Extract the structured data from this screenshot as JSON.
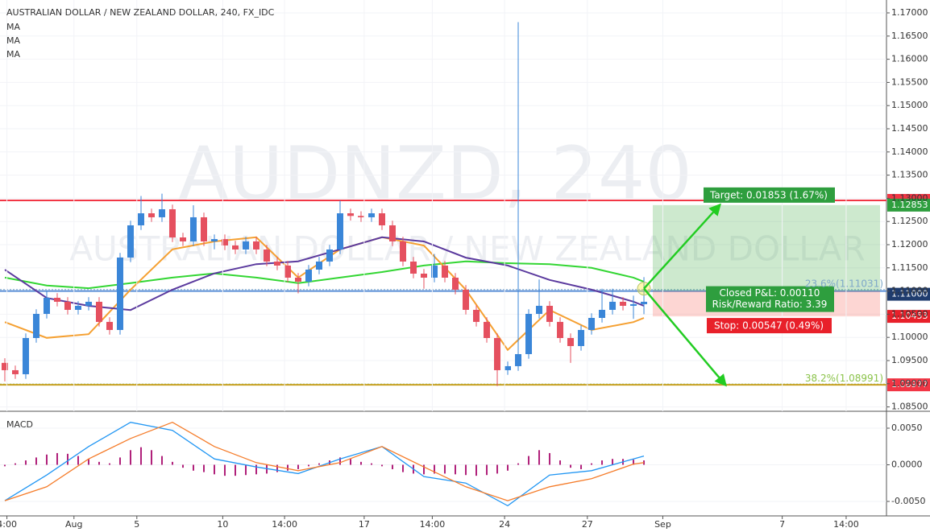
{
  "watermark": {
    "symbol": "AUDNZD, 240",
    "name": "AUSTRALIAN DOLLAR / NEW ZEALAND DOLLAR"
  },
  "chart_data": [
    {
      "type": "candlestick",
      "title": "AUSTRALIAN DOLLAR / NEW ZEALAND DOLLAR, 240, FX_IDC",
      "up_color": "#3a86d8",
      "down_color": "#e5505f",
      "grid": true,
      "xlim": [
        -0.46,
        84.15
      ],
      "ylim": [
        1.08406,
        1.17278
      ],
      "yticks": [
        {
          "value": 1.085,
          "label": "1.08500"
        },
        {
          "value": 1.09,
          "label": "1.09000"
        },
        {
          "value": 1.095,
          "label": "1.09500"
        },
        {
          "value": 1.1,
          "label": "1.10000"
        },
        {
          "value": 1.105,
          "label": "1.10500"
        },
        {
          "value": 1.11,
          "label": "1.11000"
        },
        {
          "value": 1.115,
          "label": "1.11500"
        },
        {
          "value": 1.12,
          "label": "1.12000"
        },
        {
          "value": 1.125,
          "label": "1.12500"
        },
        {
          "value": 1.13,
          "label": "1.13000"
        },
        {
          "value": 1.135,
          "label": "1.13500"
        },
        {
          "value": 1.14,
          "label": "1.14000"
        },
        {
          "value": 1.145,
          "label": "1.14500"
        },
        {
          "value": 1.15,
          "label": "1.15000"
        },
        {
          "value": 1.155,
          "label": "1.15500"
        },
        {
          "value": 1.16,
          "label": "1.16000"
        },
        {
          "value": 1.165,
          "label": "1.16500"
        },
        {
          "value": 1.17,
          "label": "1.17000"
        }
      ],
      "open": [
        1.0945,
        1.09292,
        1.09205,
        1.09986,
        1.10507,
        1.10854,
        1.10768,
        1.10594,
        1.10681,
        1.10768,
        1.10334,
        1.1016,
        1.11722,
        1.12417,
        1.12677,
        1.12591,
        1.12764,
        1.12156,
        1.1207,
        1.12591,
        1.1207,
        1.1212,
        1.11983,
        1.11896,
        1.1207,
        1.11896,
        1.11636,
        1.11549,
        1.11288,
        1.11202,
        1.11462,
        1.11636,
        1.11896,
        1.12677,
        1.1262,
        1.12591,
        1.12677,
        1.12417,
        1.1207,
        1.11636,
        1.11375,
        1.11288,
        1.11549,
        1.11288,
        1.11028,
        1.10594,
        1.10334,
        1.09986,
        1.09292,
        1.09379,
        1.09639,
        1.10507,
        1.10681,
        1.10334,
        1.09986,
        1.09813,
        1.1016,
        1.1042,
        1.10594,
        1.10768,
        1.10681,
        1.10716
      ],
      "high": [
        1.0955,
        1.09392,
        1.10086,
        1.10607,
        1.11,
        1.10954,
        1.10868,
        1.10781,
        1.10868,
        1.10868,
        1.10434,
        1.11822,
        1.12517,
        1.1305,
        1.12777,
        1.131,
        1.12864,
        1.12256,
        1.1285,
        1.12691,
        1.1222,
        1.1222,
        1.12083,
        1.1217,
        1.1217,
        1.11996,
        1.11736,
        1.11649,
        1.11388,
        1.11562,
        1.11736,
        1.11996,
        1.1295,
        1.12777,
        1.1272,
        1.12777,
        1.12777,
        1.12517,
        1.1217,
        1.11736,
        1.11475,
        1.118,
        1.11649,
        1.11388,
        1.11128,
        1.10694,
        1.10434,
        1.10086,
        1.09479,
        1.168,
        1.10607,
        1.1125,
        1.10781,
        1.10434,
        1.10086,
        1.1026,
        1.1052,
        1.1105,
        1.1105,
        1.10868,
        1.109,
        1.113
      ],
      "low": [
        1.0905,
        1.09105,
        1.09105,
        1.09886,
        1.10407,
        1.10668,
        1.10494,
        1.10494,
        1.10581,
        1.10234,
        1.1006,
        1.1006,
        1.11622,
        1.12317,
        1.12491,
        1.12491,
        1.12056,
        1.1197,
        1.1197,
        1.1197,
        1.119,
        1.11883,
        1.11796,
        1.11796,
        1.11796,
        1.11536,
        1.11449,
        1.11188,
        1.1095,
        1.11102,
        1.11362,
        1.11536,
        1.11796,
        1.1252,
        1.12491,
        1.12491,
        1.12317,
        1.1197,
        1.11536,
        1.11275,
        1.1105,
        1.11188,
        1.11188,
        1.10928,
        1.10494,
        1.10234,
        1.09886,
        1.0895,
        1.09192,
        1.09279,
        1.09539,
        1.10407,
        1.10234,
        1.09886,
        1.0945,
        1.09713,
        1.1006,
        1.1032,
        1.10494,
        1.10581,
        1.104,
        1.105
      ],
      "close": [
        1.09292,
        1.09205,
        1.09986,
        1.10507,
        1.10854,
        1.10768,
        1.10594,
        1.10681,
        1.10768,
        1.10334,
        1.1016,
        1.11722,
        1.12417,
        1.12677,
        1.12591,
        1.12764,
        1.12156,
        1.1207,
        1.12591,
        1.1207,
        1.1212,
        1.11983,
        1.11896,
        1.1207,
        1.11896,
        1.11636,
        1.11549,
        1.11288,
        1.11202,
        1.11462,
        1.11636,
        1.11896,
        1.12677,
        1.1262,
        1.12591,
        1.12677,
        1.12417,
        1.1207,
        1.11636,
        1.11375,
        1.11288,
        1.11549,
        1.11288,
        1.11028,
        1.10594,
        1.10334,
        1.09986,
        1.09292,
        1.09379,
        1.09639,
        1.10507,
        1.10681,
        1.10334,
        1.09986,
        1.09813,
        1.1016,
        1.1042,
        1.10594,
        1.10768,
        1.10681,
        1.10716,
        1.10768
      ],
      "series": [
        {
          "name": "MA",
          "color": "#33d633",
          "x": [
            0,
            4,
            8,
            12,
            16,
            20,
            24,
            28,
            32,
            36,
            40,
            44,
            48,
            52,
            56,
            60,
            61
          ],
          "values": [
            1.1129,
            1.1112,
            1.1106,
            1.1117,
            1.1129,
            1.1138,
            1.1129,
            1.1117,
            1.1129,
            1.1141,
            1.1155,
            1.1164,
            1.116,
            1.1158,
            1.115,
            1.1129,
            1.112
          ]
        },
        {
          "name": "MA",
          "color": "#f5a031",
          "x": [
            0,
            4,
            8,
            12,
            16,
            20,
            24,
            28,
            32,
            36,
            40,
            44,
            48,
            52,
            56,
            60,
            61
          ],
          "values": [
            1.1033,
            1.0999,
            1.1007,
            1.1103,
            1.119,
            1.1207,
            1.1216,
            1.1129,
            1.119,
            1.1216,
            1.1198,
            1.1103,
            1.0973,
            1.1059,
            1.1016,
            1.1033,
            1.1042
          ]
        },
        {
          "name": "MA",
          "color": "#5b3a9e",
          "x": [
            0,
            4,
            8,
            12,
            16,
            20,
            24,
            28,
            32,
            36,
            40,
            44,
            48,
            52,
            56,
            60,
            61
          ],
          "values": [
            1.1146,
            1.1085,
            1.1068,
            1.1059,
            1.1103,
            1.1138,
            1.1158,
            1.1164,
            1.119,
            1.1216,
            1.1207,
            1.1172,
            1.1155,
            1.1124,
            1.1103,
            1.1077,
            1.1068
          ]
        }
      ],
      "levels": [
        {
          "value": 1.12955,
          "color": "#f23645"
        },
        {
          "value": 1.11,
          "label": "1.11000",
          "color": "#5b8fd6",
          "tag_color": "#1f3c6e"
        },
        {
          "value": 1.08977,
          "label": "1.08977",
          "color": "#c9a227",
          "tag_color": "#f23645"
        }
      ],
      "fibs": [
        {
          "value": 1.11031,
          "label": "23.6%(1.11031)",
          "color": "#7fa8c9"
        },
        {
          "value": 1.08991,
          "label": "38.2%(1.08991)",
          "color": "#8bc34a"
        }
      ],
      "position": {
        "entry": 1.11,
        "target": {
          "value": 1.12853,
          "label": "1.12853"
        },
        "stop": {
          "value": 1.10453,
          "label": "1.10453"
        },
        "target_text": "Target: 0.01853 (1.67%)",
        "pnl_text": "Closed P&L: 0.00110",
        "rr_text": "Risk/Reward Ratio: 3.39",
        "stop_text": "Stop: 0.00547 (0.49%)"
      }
    },
    {
      "type": "macd",
      "title": "MACD",
      "color": "#b0207a",
      "xlim": [
        -0.46,
        84.15
      ],
      "ylim": [
        -0.00687,
        0.00709
      ],
      "yticks": [
        {
          "value": 0.005,
          "label": "0.0050"
        },
        {
          "value": 0,
          "label": "0.0000"
        },
        {
          "value": -0.005,
          "label": "-0.0050"
        }
      ],
      "xticks": [
        {
          "value": 0.2,
          "label": "4:00"
        },
        {
          "value": 6.6,
          "label": "Aug"
        },
        {
          "value": 12.6,
          "label": "5"
        },
        {
          "value": 20.8,
          "label": "10"
        },
        {
          "value": 26.7,
          "label": "14:00"
        },
        {
          "value": 34.3,
          "label": "17"
        },
        {
          "value": 40.8,
          "label": "14:00"
        },
        {
          "value": 47.7,
          "label": "24"
        },
        {
          "value": 55.6,
          "label": "27"
        },
        {
          "value": 62.8,
          "label": "Sep"
        },
        {
          "value": 74.2,
          "label": "7"
        },
        {
          "value": 80.3,
          "label": "14:00"
        }
      ],
      "values": [
        -0.0002,
        0.0002,
        0.0006,
        0.001,
        0.0014,
        0.0016,
        0.0015,
        0.0012,
        0.0008,
        0.0004,
        0.0002,
        0.001,
        0.002,
        0.0024,
        0.002,
        0.0012,
        0.0004,
        -0.0004,
        -0.0008,
        -0.001,
        -0.0013,
        -0.0015,
        -0.0015,
        -0.0014,
        -0.0013,
        -0.0012,
        -0.001,
        -0.0008,
        -0.0006,
        -0.0002,
        0.0002,
        0.0006,
        0.001,
        0.0008,
        0.0004,
        0.0002,
        -0.0002,
        -0.0006,
        -0.001,
        -0.0012,
        -0.0013,
        -0.0012,
        -0.0012,
        -0.0013,
        -0.0014,
        -0.0015,
        -0.0014,
        -0.0012,
        -0.0008,
        0.0002,
        0.0012,
        0.002,
        0.0016,
        0.0006,
        -0.0004,
        -0.0006,
        0.0002,
        0.0006,
        0.0008,
        0.0008,
        0.0007,
        0.0006
      ],
      "series": [
        {
          "color": "#2196f3",
          "x": [
            0,
            4,
            8,
            12,
            16,
            20,
            24,
            28,
            32,
            36,
            40,
            44,
            48,
            52,
            56,
            60,
            61
          ],
          "values": [
            -0.0049,
            -0.0014,
            0.0025,
            0.0058,
            0.0047,
            0.0008,
            -0.0003,
            -0.0012,
            0.0008,
            0.0025,
            -0.0016,
            -0.0025,
            -0.0056,
            -0.0014,
            -0.0008,
            0.0008,
            0.0012
          ]
        },
        {
          "color": "#f57c2a",
          "x": [
            0,
            4,
            8,
            12,
            16,
            20,
            24,
            28,
            32,
            36,
            40,
            44,
            48,
            52,
            56,
            60,
            61
          ],
          "values": [
            -0.0049,
            -0.003,
            0.0008,
            0.0036,
            0.0058,
            0.0025,
            0.0003,
            -0.0008,
            0.0003,
            0.0025,
            -0.0003,
            -0.003,
            -0.0049,
            -0.003,
            -0.0019,
            0.0001,
            0.0003
          ]
        }
      ]
    }
  ]
}
